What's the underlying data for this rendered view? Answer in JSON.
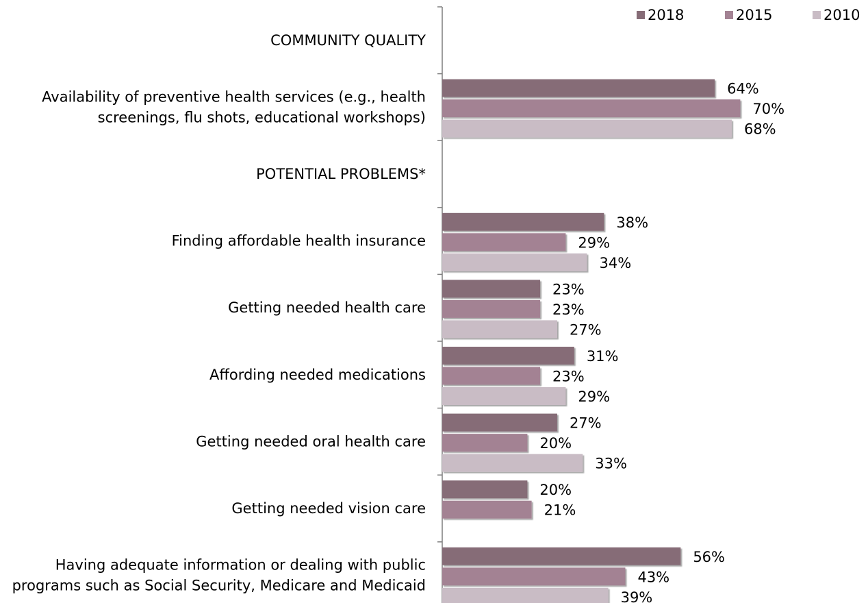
{
  "chart_data": {
    "type": "bar",
    "orientation": "horizontal",
    "legend_position": "top-right",
    "value_suffix": "%",
    "grid": false,
    "xlim": [
      0,
      100
    ],
    "series": [
      {
        "name": "2018",
        "color": "#866c77"
      },
      {
        "name": "2015",
        "color": "#a38293"
      },
      {
        "name": "2010",
        "color": "#c9bcc5"
      }
    ],
    "rows": [
      {
        "label": [
          "COMMUNITY QUALITY"
        ],
        "heading": true,
        "values": [
          null,
          null,
          null
        ]
      },
      {
        "label": [
          "Availability of preventive health services (e.g., health",
          "screenings, flu shots, educational workshops)"
        ],
        "heading": false,
        "values": [
          64,
          70,
          68
        ]
      },
      {
        "label": [
          "POTENTIAL PROBLEMS*"
        ],
        "heading": true,
        "values": [
          null,
          null,
          null
        ]
      },
      {
        "label": [
          "Finding affordable health insurance"
        ],
        "heading": false,
        "values": [
          38,
          29,
          34
        ]
      },
      {
        "label": [
          "Getting needed health care"
        ],
        "heading": false,
        "values": [
          23,
          23,
          27
        ]
      },
      {
        "label": [
          "Affording needed medications"
        ],
        "heading": false,
        "values": [
          31,
          23,
          29
        ]
      },
      {
        "label": [
          "Getting needed oral health care"
        ],
        "heading": false,
        "values": [
          27,
          20,
          33
        ]
      },
      {
        "label": [
          "Getting needed vision care"
        ],
        "heading": false,
        "values": [
          20,
          21,
          null
        ]
      },
      {
        "label": [
          "Having adequate information or dealing with public",
          "programs such as Social Security, Medicare and Medicaid"
        ],
        "heading": false,
        "values": [
          56,
          43,
          39
        ]
      }
    ]
  }
}
